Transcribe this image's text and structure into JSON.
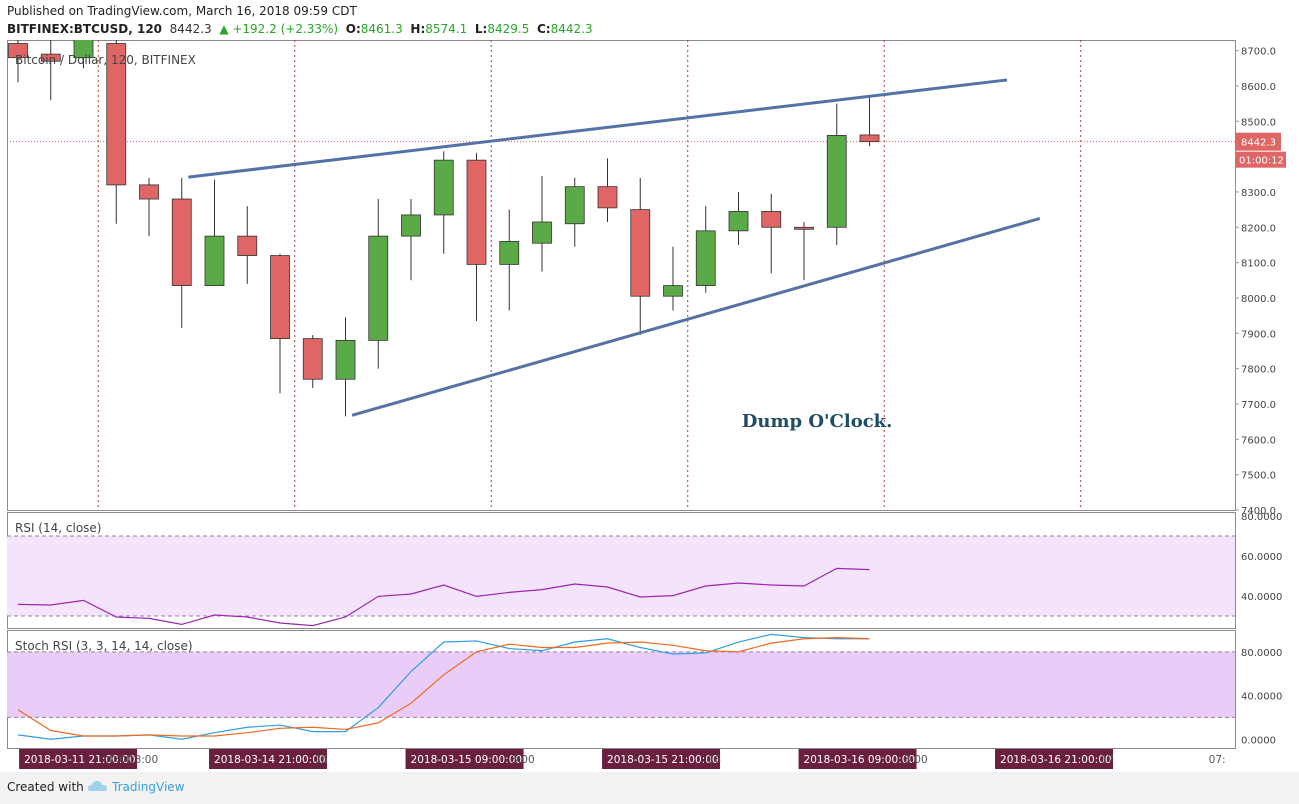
{
  "header": {
    "published": "Published on TradingView.com, March 16, 2018 09:59 CDT",
    "symbol": "BITFINEX:BTCUSD, 120",
    "last": "8442.3",
    "change": "▲ +192.2 (+2.33%)",
    "o_label": "O:",
    "o_val": "8461.3",
    "h_label": "H:",
    "h_val": "8574.1",
    "l_label": "L:",
    "l_val": "8429.5",
    "c_label": "C:",
    "c_val": "8442.3"
  },
  "colors": {
    "up": "#5aaa48",
    "down": "#e06666",
    "trend": "#5572a6",
    "rsi": "#9c27b0",
    "stochK": "#2d9fe6",
    "stochD": "#f06a20"
  },
  "chart_data": [
    {
      "type": "candlestick",
      "title": "Bitcoin / Dollar, 120, BITFINEX",
      "ylim": [
        7400,
        8730
      ],
      "yticks": [
        8700,
        8600,
        8500,
        8400,
        8300,
        8200,
        8100,
        8000,
        7900,
        7800,
        7700,
        7600,
        7500,
        7400
      ],
      "ytick_labels": [
        "8700.0",
        "8600.0",
        "8500.0",
        "8400.0",
        "8300.0",
        "8200.0",
        "8100.0",
        "8000.0",
        "7900.0",
        "7800.0",
        "7700.0",
        "7600.0",
        "7500.0",
        "7400.0"
      ],
      "candles": [
        {
          "o": 8720,
          "h": 8780,
          "l": 8610,
          "c": 8680
        },
        {
          "o": 8690,
          "h": 8740,
          "l": 8560,
          "c": 8670
        },
        {
          "o": 8680,
          "h": 8760,
          "l": 8650,
          "c": 8740
        },
        {
          "o": 8720,
          "h": 8760,
          "l": 8210,
          "c": 8320
        },
        {
          "o": 8320,
          "h": 8340,
          "l": 8175,
          "c": 8280
        },
        {
          "o": 8280,
          "h": 8340,
          "l": 7915,
          "c": 8035
        },
        {
          "o": 8035,
          "h": 8335,
          "l": 8035,
          "c": 8175
        },
        {
          "o": 8175,
          "h": 8260,
          "l": 8040,
          "c": 8120
        },
        {
          "o": 8120,
          "h": 8125,
          "l": 7730,
          "c": 7885
        },
        {
          "o": 7885,
          "h": 7895,
          "l": 7745,
          "c": 7770
        },
        {
          "o": 7770,
          "h": 7945,
          "l": 7665,
          "c": 7880
        },
        {
          "o": 7880,
          "h": 8280,
          "l": 7800,
          "c": 8175
        },
        {
          "o": 8175,
          "h": 8280,
          "l": 8050,
          "c": 8235
        },
        {
          "o": 8235,
          "h": 8415,
          "l": 8125,
          "c": 8390
        },
        {
          "o": 8390,
          "h": 8410,
          "l": 7935,
          "c": 8095
        },
        {
          "o": 8095,
          "h": 8250,
          "l": 7965,
          "c": 8160
        },
        {
          "o": 8155,
          "h": 8345,
          "l": 8075,
          "c": 8215
        },
        {
          "o": 8210,
          "h": 8340,
          "l": 8145,
          "c": 8315
        },
        {
          "o": 8315,
          "h": 8395,
          "l": 8215,
          "c": 8255
        },
        {
          "o": 8250,
          "h": 8340,
          "l": 7895,
          "c": 8005
        },
        {
          "o": 8005,
          "h": 8145,
          "l": 7965,
          "c": 8035
        },
        {
          "o": 8035,
          "h": 8260,
          "l": 8015,
          "c": 8190
        },
        {
          "o": 8190,
          "h": 8300,
          "l": 8150,
          "c": 8245
        },
        {
          "o": 8245,
          "h": 8295,
          "l": 8070,
          "c": 8200
        },
        {
          "o": 8200,
          "h": 8215,
          "l": 8050,
          "c": 8195
        },
        {
          "o": 8200,
          "h": 8550,
          "l": 8150,
          "c": 8460
        },
        {
          "o": 8461.3,
          "h": 8574.1,
          "l": 8429.5,
          "c": 8442.3
        }
      ],
      "trendlines": [
        {
          "x1": 5.2,
          "y1": 8342,
          "x2": 30.2,
          "y2": 8617
        },
        {
          "x1": 10.2,
          "y1": 7668,
          "x2": 31.2,
          "y2": 8225
        }
      ],
      "last_price_label": "8442.3",
      "countdown_label": "01:00:12",
      "annotation": "Dump O'Clock."
    },
    {
      "type": "line",
      "title": "RSI (14, close)",
      "ylim": [
        24,
        82
      ],
      "yticks": [
        80,
        60,
        40
      ],
      "ytick_labels": [
        "80.0000",
        "60.0000",
        "40.0000"
      ],
      "band": [
        30,
        70
      ],
      "values": [
        35.8,
        35.5,
        37.8,
        29.5,
        28.8,
        25.8,
        30.5,
        29.5,
        26.5,
        25.2,
        29.5,
        39.8,
        41.0,
        45.5,
        39.8,
        41.8,
        43.2,
        46.0,
        44.5,
        39.5,
        40.2,
        45.0,
        46.5,
        45.5,
        45.0,
        53.8,
        53.2
      ]
    },
    {
      "type": "line",
      "title": "Stoch RSI (3, 3, 14, 14, close)",
      "ylim": [
        -8,
        100
      ],
      "yticks": [
        80,
        40,
        0
      ],
      "ytick_labels": [
        "80.0000",
        "40.0000",
        "0.0000"
      ],
      "band": [
        20,
        80
      ],
      "series": [
        {
          "name": "K",
          "values": [
            4,
            0,
            3,
            3,
            4,
            0,
            6,
            11,
            13,
            7,
            7,
            29,
            62,
            89,
            90,
            83,
            81,
            89,
            92,
            84,
            78,
            79,
            89,
            96,
            93,
            92,
            92
          ]
        },
        {
          "name": "D",
          "values": [
            27,
            8,
            3,
            3,
            4,
            3,
            3,
            6,
            10,
            11,
            9,
            15,
            33,
            59,
            80,
            87,
            84,
            84,
            88,
            89,
            86,
            81,
            80,
            88,
            92,
            93,
            92
          ]
        }
      ]
    }
  ],
  "xaxis": {
    "labels": [
      {
        "text": "2018-03-11 21:00:00",
        "x": 0.4,
        "badge": true
      },
      {
        "text": ")0:00",
        "x": 2.9,
        "badge": false
      },
      {
        "text": "13:00",
        "x": 3.6,
        "badge": false
      },
      {
        "text": "2018-03-14 21:00:00",
        "x": 6.2,
        "badge": true
      },
      {
        "text": "15",
        "x": 9.3,
        "badge": false
      },
      {
        "text": "2018-03-15 09:00:00",
        "x": 12.2,
        "badge": true
      },
      {
        "text": "3:00",
        "x": 15.3,
        "badge": false
      },
      {
        "text": "2018-03-15 21:00:00",
        "x": 18.2,
        "badge": true
      },
      {
        "text": "16",
        "x": 21.3,
        "badge": false
      },
      {
        "text": "2018-03-16 09:00:00",
        "x": 24.2,
        "badge": true
      },
      {
        "text": "3:00",
        "x": 27.3,
        "badge": false
      },
      {
        "text": "2018-03-16 21:00:00",
        "x": 30.2,
        "badge": true
      },
      {
        "text": "17",
        "x": 33.3,
        "badge": false
      },
      {
        "text": "07:",
        "x": 36.6,
        "badge": false
      }
    ],
    "vlines": [
      2.45,
      8.45,
      14.45,
      20.45,
      26.45,
      32.45
    ]
  },
  "footer": {
    "created": "Created with",
    "brand": "TradingView"
  }
}
